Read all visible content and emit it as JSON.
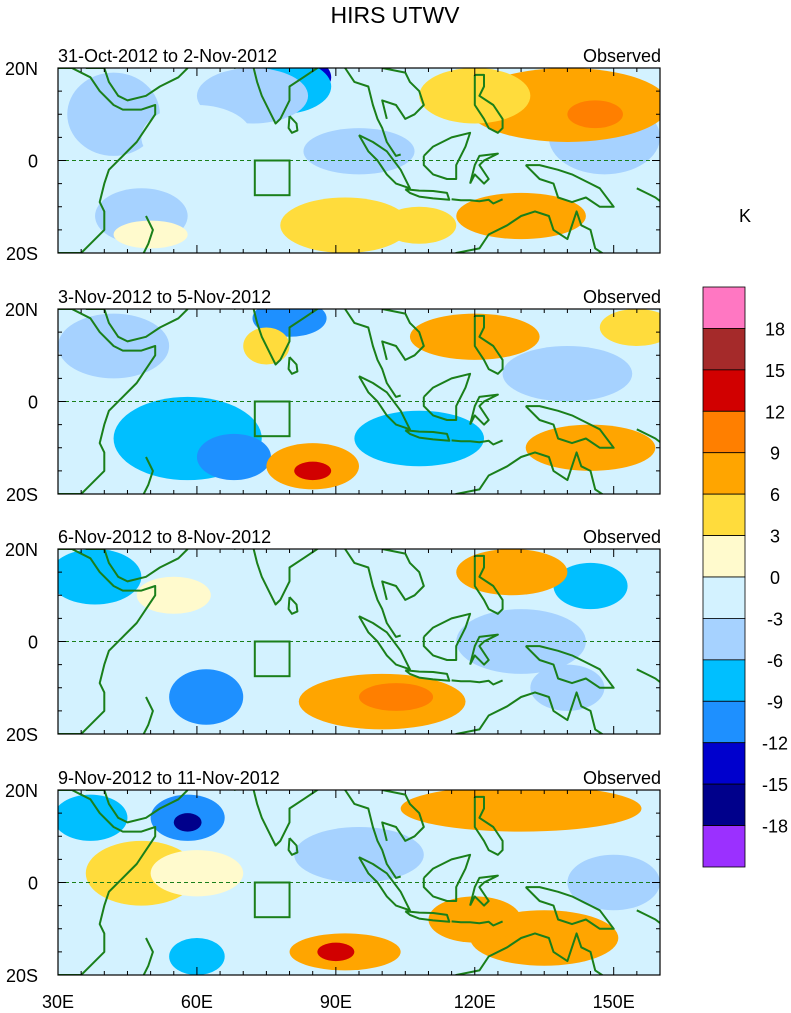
{
  "title": "HIRS UTWV",
  "units": "K",
  "panels": [
    {
      "date_range": "31-Oct-2012 to 2-Nov-2012",
      "label": "Observed",
      "blobs": [
        {
          "lon": 80,
          "lat": 18,
          "rx": 9,
          "ry": 5,
          "v": -15
        },
        {
          "lon": 78,
          "lat": 16,
          "rx": 11,
          "ry": 6,
          "v": -9
        },
        {
          "lon": 72,
          "lat": 14,
          "rx": 12,
          "ry": 6,
          "v": -6
        },
        {
          "lon": 42,
          "lat": 10,
          "rx": 10,
          "ry": 9,
          "v": -6
        },
        {
          "lon": 48,
          "lat": -12,
          "rx": 10,
          "ry": 6,
          "v": -5
        },
        {
          "lon": 60,
          "lat": 5,
          "rx": 12,
          "ry": 7,
          "v": -3
        },
        {
          "lon": 95,
          "lat": 2,
          "rx": 12,
          "ry": 5,
          "v": -4
        },
        {
          "lon": 148,
          "lat": 5,
          "rx": 12,
          "ry": 8,
          "v": -4
        },
        {
          "lon": 140,
          "lat": 12,
          "rx": 22,
          "ry": 8,
          "v": 6
        },
        {
          "lon": 146,
          "lat": 10,
          "rx": 6,
          "ry": 3,
          "v": 11
        },
        {
          "lon": 120,
          "lat": 14,
          "rx": 12,
          "ry": 6,
          "v": 5
        },
        {
          "lon": 130,
          "lat": -12,
          "rx": 14,
          "ry": 5,
          "v": 6
        },
        {
          "lon": 92,
          "lat": -14,
          "rx": 14,
          "ry": 6,
          "v": 5
        },
        {
          "lon": 108,
          "lat": -14,
          "rx": 8,
          "ry": 4,
          "v": 3
        },
        {
          "lon": 50,
          "lat": -16,
          "rx": 8,
          "ry": 3,
          "v": 2
        }
      ]
    },
    {
      "date_range": "3-Nov-2012 to 5-Nov-2012",
      "label": "Observed",
      "blobs": [
        {
          "lon": 58,
          "lat": -8,
          "rx": 16,
          "ry": 9,
          "v": -8
        },
        {
          "lon": 68,
          "lat": -12,
          "rx": 8,
          "ry": 5,
          "v": -10
        },
        {
          "lon": 108,
          "lat": -8,
          "rx": 14,
          "ry": 6,
          "v": -8
        },
        {
          "lon": 80,
          "lat": 18,
          "rx": 8,
          "ry": 4,
          "v": -12
        },
        {
          "lon": 42,
          "lat": 12,
          "rx": 12,
          "ry": 7,
          "v": -6
        },
        {
          "lon": 140,
          "lat": 6,
          "rx": 14,
          "ry": 6,
          "v": -4
        },
        {
          "lon": 85,
          "lat": -14,
          "rx": 10,
          "ry": 5,
          "v": 7
        },
        {
          "lon": 85,
          "lat": -15,
          "rx": 4,
          "ry": 2,
          "v": 14
        },
        {
          "lon": 145,
          "lat": -10,
          "rx": 14,
          "ry": 5,
          "v": 8
        },
        {
          "lon": 120,
          "lat": 14,
          "rx": 14,
          "ry": 5,
          "v": 6
        },
        {
          "lon": 155,
          "lat": 16,
          "rx": 8,
          "ry": 4,
          "v": 5
        },
        {
          "lon": 75,
          "lat": 12,
          "rx": 5,
          "ry": 4,
          "v": 3
        }
      ]
    },
    {
      "date_range": "6-Nov-2012 to 8-Nov-2012",
      "label": "Observed",
      "blobs": [
        {
          "lon": 38,
          "lat": 14,
          "rx": 10,
          "ry": 6,
          "v": -9
        },
        {
          "lon": 62,
          "lat": -12,
          "rx": 8,
          "ry": 6,
          "v": -10
        },
        {
          "lon": 145,
          "lat": 12,
          "rx": 8,
          "ry": 5,
          "v": -7
        },
        {
          "lon": 140,
          "lat": -10,
          "rx": 8,
          "ry": 5,
          "v": -6
        },
        {
          "lon": 80,
          "lat": 4,
          "rx": 18,
          "ry": 9,
          "v": -3
        },
        {
          "lon": 130,
          "lat": 0,
          "rx": 14,
          "ry": 7,
          "v": -4
        },
        {
          "lon": 100,
          "lat": -13,
          "rx": 18,
          "ry": 6,
          "v": 6
        },
        {
          "lon": 103,
          "lat": -12,
          "rx": 8,
          "ry": 3,
          "v": 9
        },
        {
          "lon": 128,
          "lat": 15,
          "rx": 12,
          "ry": 5,
          "v": 7
        },
        {
          "lon": 55,
          "lat": 10,
          "rx": 8,
          "ry": 4,
          "v": 2
        }
      ]
    },
    {
      "date_range": "9-Nov-2012 to 11-Nov-2012",
      "label": "Observed",
      "blobs": [
        {
          "lon": 58,
          "lat": 14,
          "rx": 8,
          "ry": 5,
          "v": -10
        },
        {
          "lon": 58,
          "lat": 13,
          "rx": 3,
          "ry": 2,
          "v": -16
        },
        {
          "lon": 37,
          "lat": 14,
          "rx": 8,
          "ry": 5,
          "v": -7
        },
        {
          "lon": 60,
          "lat": -16,
          "rx": 6,
          "ry": 4,
          "v": -9
        },
        {
          "lon": 95,
          "lat": 6,
          "rx": 14,
          "ry": 6,
          "v": -4
        },
        {
          "lon": 150,
          "lat": 0,
          "rx": 10,
          "ry": 6,
          "v": -4
        },
        {
          "lon": 130,
          "lat": 16,
          "rx": 26,
          "ry": 5,
          "v": 6
        },
        {
          "lon": 92,
          "lat": -15,
          "rx": 12,
          "ry": 4,
          "v": 7
        },
        {
          "lon": 90,
          "lat": -15,
          "rx": 4,
          "ry": 2,
          "v": 12
        },
        {
          "lon": 135,
          "lat": -12,
          "rx": 16,
          "ry": 6,
          "v": 7
        },
        {
          "lon": 120,
          "lat": -8,
          "rx": 10,
          "ry": 5,
          "v": 8
        },
        {
          "lon": 48,
          "lat": 2,
          "rx": 12,
          "ry": 7,
          "v": 4
        },
        {
          "lon": 60,
          "lat": 2,
          "rx": 10,
          "ry": 5,
          "v": 2
        }
      ]
    }
  ],
  "axes": {
    "lat_labels": [
      "20N",
      "0",
      "20S"
    ],
    "lon_ticks": [
      30,
      60,
      90,
      120,
      150
    ],
    "lon_labels": [
      "30E",
      "60E",
      "90E",
      "120E",
      "150E"
    ],
    "lon_range": [
      30,
      160
    ],
    "lat_range": [
      -20,
      20
    ]
  },
  "colorbar": {
    "labels": [
      "18",
      "15",
      "12",
      "9",
      "6",
      "3",
      "0",
      "-3",
      "-6",
      "-9",
      "-12",
      "-15",
      "-18"
    ],
    "levels": [
      -18,
      -15,
      -12,
      -9,
      -6,
      -3,
      0,
      3,
      6,
      9,
      12,
      15,
      18
    ],
    "colors": [
      "#9b30ff",
      "#00008b",
      "#0000cd",
      "#1e90ff",
      "#00bfff",
      "#a6d2ff",
      "#d3f2ff",
      "#fffacd",
      "#ffdc3c",
      "#ffa500",
      "#ff7f00",
      "#d10000",
      "#a52a2a",
      "#ff77c2"
    ]
  },
  "colors": {
    "coast": "#1a7f1a",
    "equator": "#1a7f1a"
  }
}
